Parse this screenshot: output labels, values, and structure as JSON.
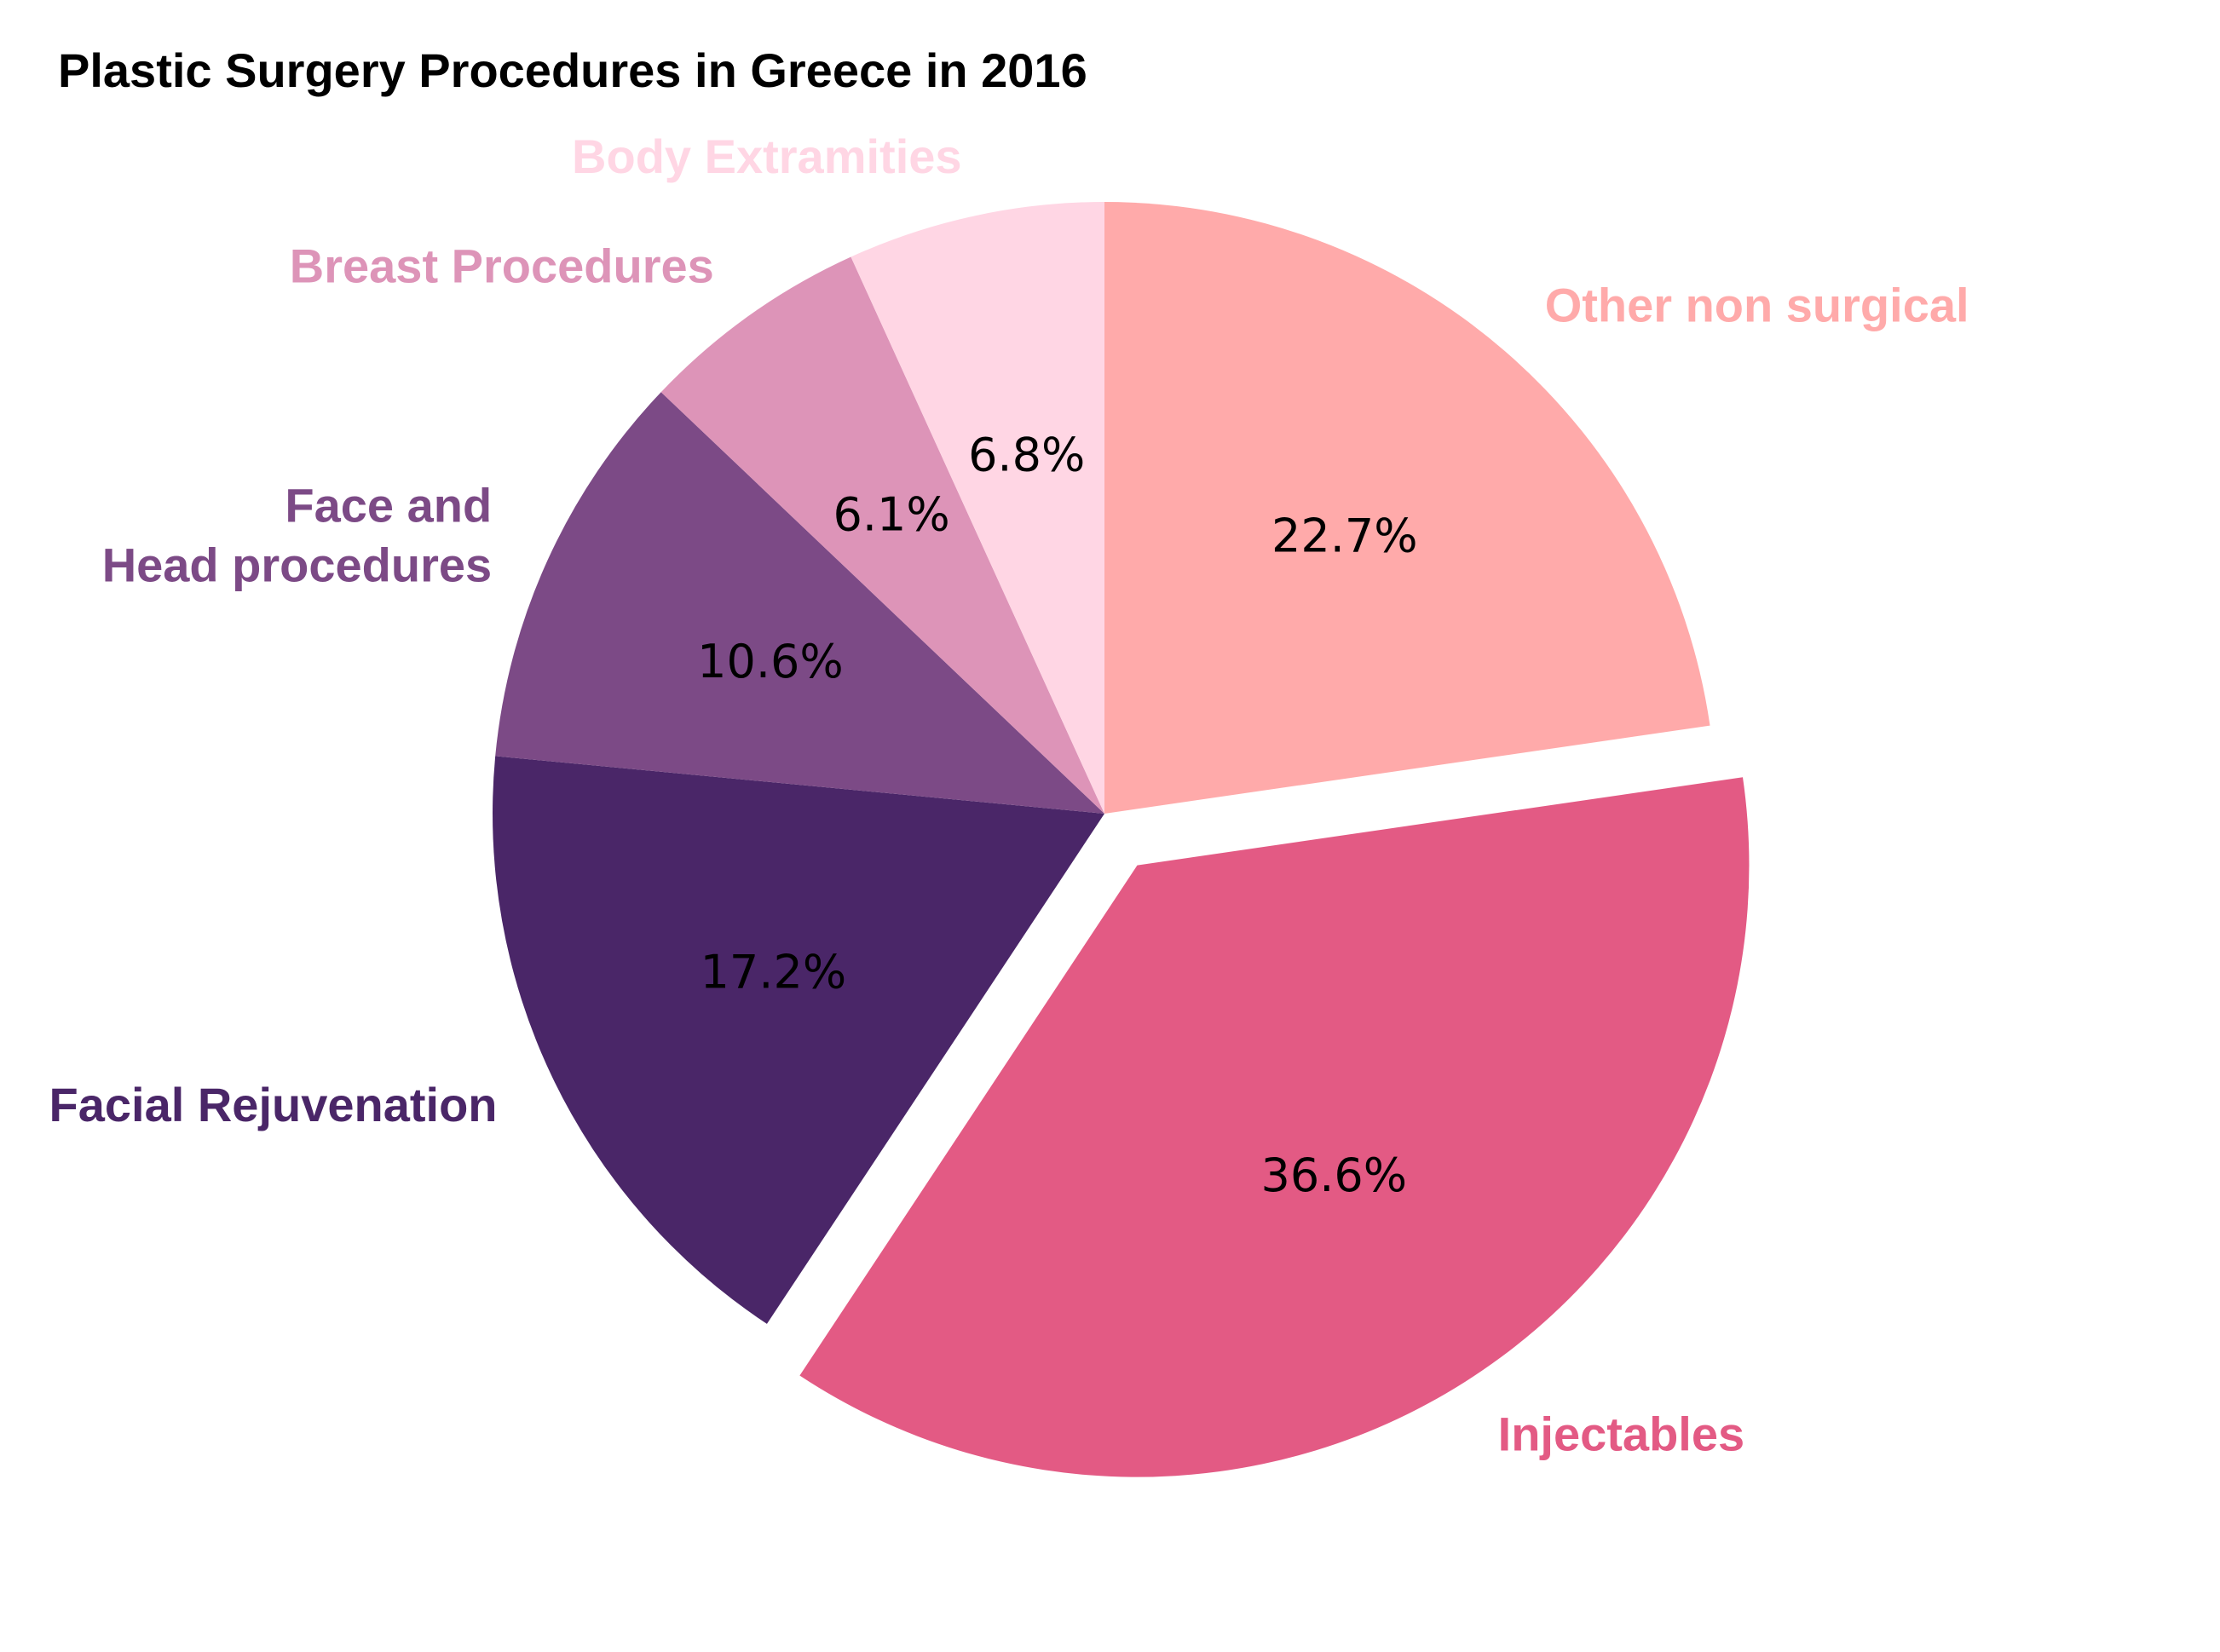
{
  "chart_data": {
    "type": "pie",
    "title": "Plastic Surgery Procedures in Greece in 2016",
    "start_angle_deg": 90,
    "direction": "clockwise",
    "slices": [
      {
        "label": "Other non surgical",
        "label_lines": [
          "Other non surgical"
        ],
        "value": 22.7,
        "percent_text": "22.7%",
        "color": "#FFAAAA",
        "exploded": false
      },
      {
        "label": "Injectables",
        "label_lines": [
          "Injectables"
        ],
        "value": 36.6,
        "percent_text": "36.6%",
        "color": "#E35A84",
        "exploded": true
      },
      {
        "label": "Facial Rejuvenation",
        "label_lines": [
          "Facial Rejuvenation"
        ],
        "value": 17.2,
        "percent_text": "17.2%",
        "color": "#4A2668",
        "exploded": false
      },
      {
        "label": "Face and Head procedures",
        "label_lines": [
          "Face and",
          "Head procedures"
        ],
        "value": 10.6,
        "percent_text": "10.6%",
        "color": "#7C4A86",
        "exploded": false
      },
      {
        "label": "Breast Procedures",
        "label_lines": [
          "Breast Procedures"
        ],
        "value": 6.1,
        "percent_text": "6.1%",
        "color": "#DD94B8",
        "exploded": false
      },
      {
        "label": "Body Extramities",
        "label_lines": [
          "Body Extramities"
        ],
        "value": 6.8,
        "percent_text": "6.8%",
        "color": "#FFD6E4",
        "exploded": false
      }
    ]
  }
}
